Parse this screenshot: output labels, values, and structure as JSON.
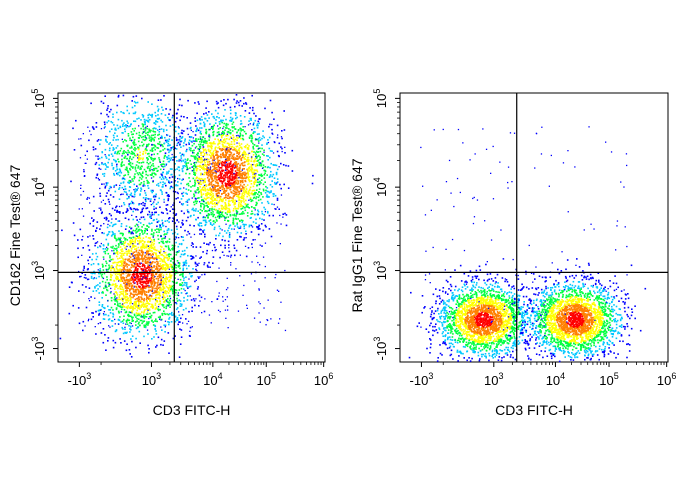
{
  "chart_data": [
    {
      "type": "scatter",
      "subtype": "flow-cytometry-density-dot-plot",
      "xlabel": "CD3 FITC-H",
      "ylabel": "CD162 Fine Test® 647",
      "xscale": "biexponential",
      "yscale": "biexponential",
      "x_ticks": [
        {
          "base": "-10",
          "exp": "3"
        },
        {
          "base": "10",
          "exp": "3"
        },
        {
          "base": "10",
          "exp": "4"
        },
        {
          "base": "10",
          "exp": "5"
        },
        {
          "base": "10",
          "exp": "6"
        }
      ],
      "y_ticks": [
        {
          "base": "-10",
          "exp": "3"
        },
        {
          "base": "10",
          "exp": "3"
        },
        {
          "base": "10",
          "exp": "4"
        },
        {
          "base": "10",
          "exp": "5"
        }
      ],
      "quadrant_gate": {
        "x": 2500,
        "y": 850
      },
      "grid": false,
      "colormap": [
        "#0000ff",
        "#00c8ff",
        "#00ff40",
        "#ffff00",
        "#ff8000",
        "#ff0000"
      ],
      "populations": [
        {
          "x_center": 300,
          "y_center": 700,
          "density": "high"
        },
        {
          "x_center": 300,
          "y_center": 25000,
          "density": "medium"
        },
        {
          "x_center": 20000,
          "y_center": 15000,
          "density": "high"
        }
      ]
    },
    {
      "type": "scatter",
      "subtype": "flow-cytometry-density-dot-plot",
      "xlabel": "CD3 FITC-H",
      "ylabel": "Rat IgG1 Fine Test® 647",
      "xscale": "biexponential",
      "yscale": "biexponential",
      "x_ticks": [
        {
          "base": "-10",
          "exp": "3"
        },
        {
          "base": "10",
          "exp": "3"
        },
        {
          "base": "10",
          "exp": "4"
        },
        {
          "base": "10",
          "exp": "5"
        },
        {
          "base": "10",
          "exp": "6"
        }
      ],
      "y_ticks": [
        {
          "base": "-10",
          "exp": "3"
        },
        {
          "base": "10",
          "exp": "3"
        },
        {
          "base": "10",
          "exp": "4"
        },
        {
          "base": "10",
          "exp": "5"
        }
      ],
      "quadrant_gate": {
        "x": 2500,
        "y": 850
      },
      "grid": false,
      "colormap": [
        "#0000ff",
        "#00c8ff",
        "#00ff40",
        "#ffff00",
        "#ff8000",
        "#ff0000"
      ],
      "populations": [
        {
          "x_center": 300,
          "y_center": 0,
          "density": "high"
        },
        {
          "x_center": 25000,
          "y_center": 0,
          "density": "high"
        }
      ]
    }
  ]
}
